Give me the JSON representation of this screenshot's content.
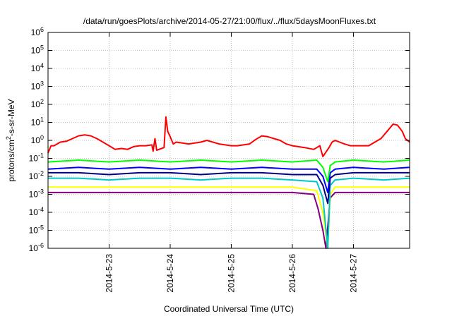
{
  "chart_data": {
    "type": "line",
    "title": "/data/run/goesPlots/archive/2014-05-27/21:00/flux/../flux/5daysMoonFluxes.txt",
    "xlabel": "Coordinated Universal Time (UTC)",
    "ylabel": {
      "pre": "protons/cm",
      "sup": "2",
      "post": "-s-sr-MeV"
    },
    "xlim": [
      0,
      5.92
    ],
    "ylim": [
      -6,
      6
    ],
    "y_scale": "log",
    "grid": true,
    "x_ticks": [
      {
        "x": 1,
        "label": "2014-5-23"
      },
      {
        "x": 2,
        "label": "2014-5-24"
      },
      {
        "x": 3,
        "label": "2014-5-25"
      },
      {
        "x": 4,
        "label": "2014-5-26"
      },
      {
        "x": 5,
        "label": "2014-5-27"
      }
    ],
    "y_ticks": [
      {
        "exp": -6,
        "label": "10",
        "sup": "-6"
      },
      {
        "exp": -5,
        "label": "10",
        "sup": "-5"
      },
      {
        "exp": -4,
        "label": "10",
        "sup": "-4"
      },
      {
        "exp": -3,
        "label": "10",
        "sup": "-3"
      },
      {
        "exp": -2,
        "label": "10",
        "sup": "-2"
      },
      {
        "exp": -1,
        "label": "10",
        "sup": "-1"
      },
      {
        "exp": 0,
        "label": "10",
        "sup": "0"
      },
      {
        "exp": 1,
        "label": "10",
        "sup": "1"
      },
      {
        "exp": 2,
        "label": "10",
        "sup": "2"
      },
      {
        "exp": 3,
        "label": "10",
        "sup": "3"
      },
      {
        "exp": 4,
        "label": "10",
        "sup": "4"
      },
      {
        "exp": 5,
        "label": "10",
        "sup": "5"
      },
      {
        "exp": 6,
        "label": "10",
        "sup": "6"
      }
    ],
    "series": [
      {
        "color": "#ff0000",
        "values": [
          [
            0.0,
            -0.7
          ],
          [
            0.05,
            -0.3
          ],
          [
            0.1,
            -0.3
          ],
          [
            0.2,
            -0.1
          ],
          [
            0.3,
            -0.05
          ],
          [
            0.4,
            0.1
          ],
          [
            0.5,
            0.25
          ],
          [
            0.6,
            0.3
          ],
          [
            0.7,
            0.25
          ],
          [
            0.8,
            0.1
          ],
          [
            0.9,
            -0.1
          ],
          [
            1.0,
            -0.3
          ],
          [
            1.1,
            -0.5
          ],
          [
            1.2,
            -0.45
          ],
          [
            1.3,
            -0.5
          ],
          [
            1.4,
            -0.35
          ],
          [
            1.5,
            -0.3
          ],
          [
            1.6,
            -0.3
          ],
          [
            1.7,
            -0.25
          ],
          [
            1.72,
            -0.6
          ],
          [
            1.75,
            0.1
          ],
          [
            1.78,
            -0.55
          ],
          [
            1.9,
            -0.4
          ],
          [
            1.93,
            1.3
          ],
          [
            1.96,
            0.5
          ],
          [
            2.0,
            0.2
          ],
          [
            2.05,
            -0.2
          ],
          [
            2.1,
            -0.1
          ],
          [
            2.3,
            -0.2
          ],
          [
            2.5,
            -0.1
          ],
          [
            2.6,
            0.0
          ],
          [
            2.8,
            -0.2
          ],
          [
            3.0,
            -0.3
          ],
          [
            3.1,
            -0.3
          ],
          [
            3.3,
            -0.2
          ],
          [
            3.4,
            0.05
          ],
          [
            3.5,
            0.25
          ],
          [
            3.6,
            0.2
          ],
          [
            3.7,
            0.1
          ],
          [
            3.8,
            0.0
          ],
          [
            3.9,
            -0.2
          ],
          [
            4.0,
            -0.3
          ],
          [
            4.2,
            -0.4
          ],
          [
            4.35,
            -0.5
          ],
          [
            4.45,
            -0.3
          ],
          [
            4.5,
            -0.9
          ],
          [
            4.58,
            -0.5
          ],
          [
            4.6,
            -0.4
          ],
          [
            4.65,
            -0.1
          ],
          [
            4.7,
            0.0
          ],
          [
            4.85,
            -0.2
          ],
          [
            4.95,
            -0.3
          ],
          [
            5.1,
            -0.3
          ],
          [
            5.25,
            -0.3
          ],
          [
            5.35,
            -0.1
          ],
          [
            5.45,
            0.1
          ],
          [
            5.55,
            0.5
          ],
          [
            5.65,
            0.9
          ],
          [
            5.72,
            0.85
          ],
          [
            5.8,
            0.5
          ],
          [
            5.85,
            0.1
          ],
          [
            5.92,
            -0.1
          ]
        ]
      },
      {
        "color": "#00ff00",
        "values": [
          [
            0.0,
            -1.2
          ],
          [
            0.5,
            -1.1
          ],
          [
            1.0,
            -1.2
          ],
          [
            1.5,
            -1.1
          ],
          [
            2.0,
            -1.2
          ],
          [
            2.5,
            -1.1
          ],
          [
            3.0,
            -1.2
          ],
          [
            3.5,
            -1.1
          ],
          [
            4.0,
            -1.2
          ],
          [
            4.4,
            -1.1
          ],
          [
            4.5,
            -1.5
          ],
          [
            4.58,
            -2.3
          ],
          [
            4.62,
            -1.4
          ],
          [
            4.7,
            -1.2
          ],
          [
            5.0,
            -1.1
          ],
          [
            5.5,
            -1.2
          ],
          [
            5.92,
            -1.1
          ]
        ]
      },
      {
        "color": "#0000ff",
        "values": [
          [
            0.0,
            -1.6
          ],
          [
            0.5,
            -1.5
          ],
          [
            1.0,
            -1.6
          ],
          [
            1.5,
            -1.5
          ],
          [
            2.0,
            -1.6
          ],
          [
            2.5,
            -1.5
          ],
          [
            3.0,
            -1.6
          ],
          [
            3.5,
            -1.5
          ],
          [
            4.0,
            -1.6
          ],
          [
            4.4,
            -1.6
          ],
          [
            4.5,
            -2.0
          ],
          [
            4.58,
            -2.9
          ],
          [
            4.62,
            -1.8
          ],
          [
            4.7,
            -1.6
          ],
          [
            5.0,
            -1.5
          ],
          [
            5.5,
            -1.6
          ],
          [
            5.92,
            -1.5
          ]
        ]
      },
      {
        "color": "#000080",
        "values": [
          [
            0.0,
            -1.8
          ],
          [
            0.5,
            -1.8
          ],
          [
            1.0,
            -1.9
          ],
          [
            1.5,
            -1.8
          ],
          [
            2.0,
            -1.8
          ],
          [
            2.5,
            -1.9
          ],
          [
            3.0,
            -1.8
          ],
          [
            3.5,
            -1.8
          ],
          [
            4.0,
            -1.9
          ],
          [
            4.4,
            -1.9
          ],
          [
            4.5,
            -2.5
          ],
          [
            4.58,
            -3.5
          ],
          [
            4.62,
            -2.1
          ],
          [
            4.7,
            -1.9
          ],
          [
            5.0,
            -1.8
          ],
          [
            5.5,
            -1.8
          ],
          [
            5.92,
            -1.8
          ]
        ]
      },
      {
        "color": "#00c8c8",
        "values": [
          [
            0.0,
            -2.1
          ],
          [
            0.5,
            -2.1
          ],
          [
            1.0,
            -2.2
          ],
          [
            1.5,
            -2.1
          ],
          [
            2.0,
            -2.1
          ],
          [
            2.5,
            -2.2
          ],
          [
            3.0,
            -2.1
          ],
          [
            3.5,
            -2.1
          ],
          [
            4.0,
            -2.2
          ],
          [
            4.4,
            -2.3
          ],
          [
            4.5,
            -3.2
          ],
          [
            4.58,
            -6.0
          ],
          [
            4.62,
            -2.5
          ],
          [
            4.7,
            -2.2
          ],
          [
            5.0,
            -2.1
          ],
          [
            5.5,
            -2.2
          ],
          [
            5.92,
            -2.1
          ]
        ]
      },
      {
        "color": "#ffff00",
        "values": [
          [
            0.0,
            -2.6
          ],
          [
            0.5,
            -2.6
          ],
          [
            1.0,
            -2.6
          ],
          [
            1.5,
            -2.6
          ],
          [
            2.0,
            -2.6
          ],
          [
            2.5,
            -2.6
          ],
          [
            3.0,
            -2.6
          ],
          [
            3.5,
            -2.6
          ],
          [
            4.0,
            -2.6
          ],
          [
            4.4,
            -2.8
          ],
          [
            4.5,
            -4.0
          ],
          [
            4.58,
            -6.0
          ],
          [
            4.62,
            -3.0
          ],
          [
            4.7,
            -2.6
          ],
          [
            5.0,
            -2.6
          ],
          [
            5.5,
            -2.6
          ],
          [
            5.92,
            -2.6
          ]
        ]
      },
      {
        "color": "#800080",
        "values": [
          [
            0.0,
            -2.9
          ],
          [
            0.5,
            -2.9
          ],
          [
            1.0,
            -2.9
          ],
          [
            1.5,
            -2.9
          ],
          [
            2.0,
            -2.9
          ],
          [
            2.5,
            -2.9
          ],
          [
            3.0,
            -2.9
          ],
          [
            3.5,
            -2.9
          ],
          [
            4.0,
            -2.9
          ],
          [
            4.35,
            -3.0
          ],
          [
            4.42,
            -3.8
          ],
          [
            4.5,
            -5.0
          ],
          [
            4.55,
            -6.0
          ],
          [
            4.62,
            -3.2
          ],
          [
            4.7,
            -2.9
          ],
          [
            5.0,
            -2.9
          ],
          [
            5.5,
            -2.9
          ],
          [
            5.92,
            -2.9
          ]
        ]
      }
    ]
  }
}
